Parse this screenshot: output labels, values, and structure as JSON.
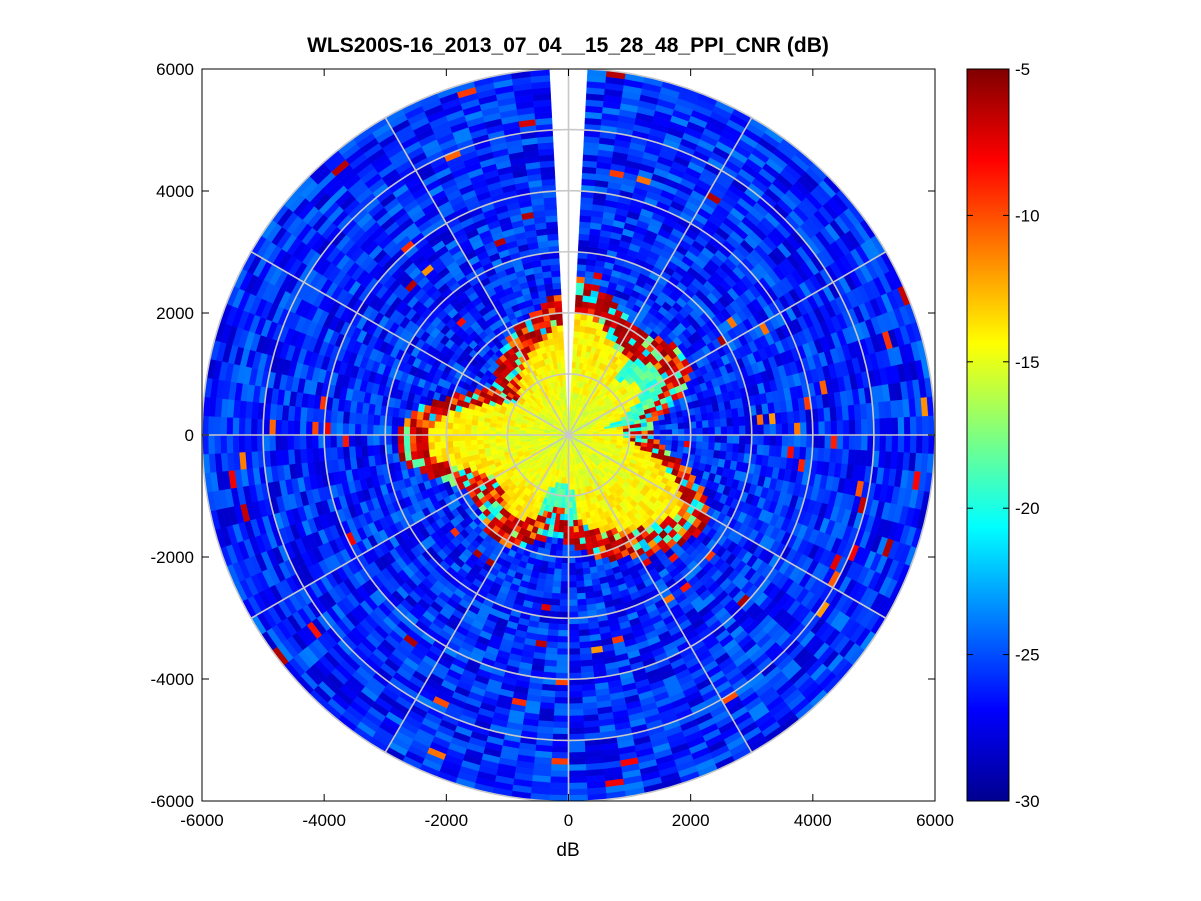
{
  "chart_data": {
    "type": "heatmap",
    "subtype": "polar-ppi",
    "title": "WLS200S-16_2013_07_04__15_28_48_PPI_CNR (dB)",
    "xlabel": "dB",
    "ylabel": "",
    "xlim": [
      -6000,
      6000
    ],
    "ylim": [
      -6000,
      6000
    ],
    "x_ticks": [
      "-6000",
      "-4000",
      "-2000",
      "0",
      "2000",
      "4000",
      "6000"
    ],
    "y_ticks": [
      "6000",
      "4000",
      "2000",
      "0",
      "-2000",
      "-4000",
      "-6000"
    ],
    "x_tick_values": [
      -6000,
      -4000,
      -2000,
      0,
      2000,
      4000,
      6000
    ],
    "y_tick_values": [
      6000,
      4000,
      2000,
      0,
      -2000,
      -4000,
      -6000
    ],
    "max_range": 6000,
    "range_rings": [
      1000,
      2000,
      3000,
      4000,
      5000,
      6000
    ],
    "spoke_angles_deg": [
      0,
      30,
      60,
      90,
      120,
      150,
      180,
      210,
      240,
      270,
      300,
      330
    ],
    "grid": true,
    "colormap": "jet",
    "colorbar": {
      "min": -30,
      "max": -5,
      "ticks": [
        "-5",
        "-10",
        "-15",
        "-20",
        "-25",
        "-30"
      ],
      "tick_values": [
        -5,
        -10,
        -15,
        -20,
        -25,
        -30
      ]
    },
    "missing_sector_deg": [
      -2,
      2
    ],
    "field_description": "CNR high (about -15 dB) within roughly 1500-2500 m range, strong returns (-5 dB) at the boundary, low (about -26 dB) beyond."
  }
}
